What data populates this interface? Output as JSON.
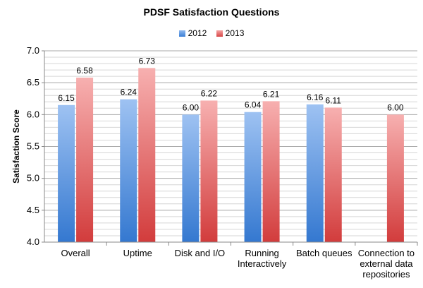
{
  "chart_data": {
    "type": "bar",
    "title": "PDSF Satisfaction Questions",
    "ylabel": "Satisfaction Score",
    "xlabel": "",
    "ylim": [
      4.0,
      7.0
    ],
    "yticks": [
      "4.0",
      "4.5",
      "5.0",
      "5.5",
      "6.0",
      "6.5",
      "7.0"
    ],
    "grid": true,
    "legend_position": "top-center",
    "categories": [
      [
        "Overall"
      ],
      [
        "Uptime"
      ],
      [
        "Disk and I/O"
      ],
      [
        "Running",
        "Interactively"
      ],
      [
        "Batch queues"
      ],
      [
        "Connection to",
        "external data",
        "repositories"
      ]
    ],
    "series": [
      {
        "name": "2012",
        "values": [
          6.15,
          6.24,
          6.0,
          6.04,
          6.16,
          null
        ],
        "labels": [
          "6.15",
          "6.24",
          "6.00",
          "6.04",
          "6.16",
          ""
        ],
        "color_top": "#9ec2f2",
        "color_bottom": "#3478d0"
      },
      {
        "name": "2013",
        "values": [
          6.58,
          6.73,
          6.22,
          6.21,
          6.11,
          6.0
        ],
        "labels": [
          "6.58",
          "6.73",
          "6.22",
          "6.21",
          "6.11",
          "6.00"
        ],
        "color_top": "#f7b0b0",
        "color_bottom": "#d23c3c"
      }
    ]
  }
}
